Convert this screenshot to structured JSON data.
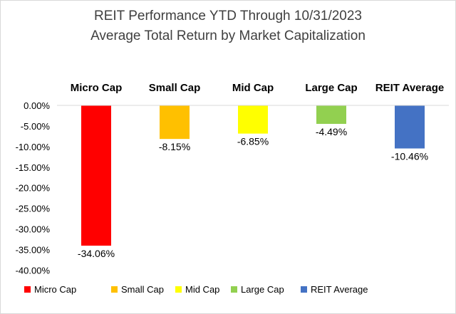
{
  "chart_data": {
    "type": "bar",
    "title": [
      "REIT Performance YTD Through 10/31/2023",
      "Average Total Return by Market Capitalization"
    ],
    "categories": [
      "Micro Cap",
      "Small Cap",
      "Mid Cap",
      "Large Cap",
      "REIT Average"
    ],
    "values": [
      -34.06,
      -8.15,
      -6.85,
      -4.49,
      -10.46
    ],
    "value_labels": [
      "-34.06%",
      "-8.15%",
      "-6.85%",
      "-4.49%",
      "-10.46%"
    ],
    "colors": [
      "#ff0000",
      "#ffc000",
      "#ffff00",
      "#92d050",
      "#4472c4"
    ],
    "ylim": [
      -40,
      0
    ],
    "yticks": [
      0,
      -5,
      -10,
      -15,
      -20,
      -25,
      -30,
      -35,
      -40
    ],
    "ytick_labels": [
      "0.00%",
      "-5.00%",
      "-10.00%",
      "-15.00%",
      "-20.00%",
      "-25.00%",
      "-30.00%",
      "-35.00%",
      "-40.00%"
    ],
    "category_axis_position": "top",
    "legend_position": "bottom",
    "grid": false,
    "xlabel": "",
    "ylabel": ""
  }
}
